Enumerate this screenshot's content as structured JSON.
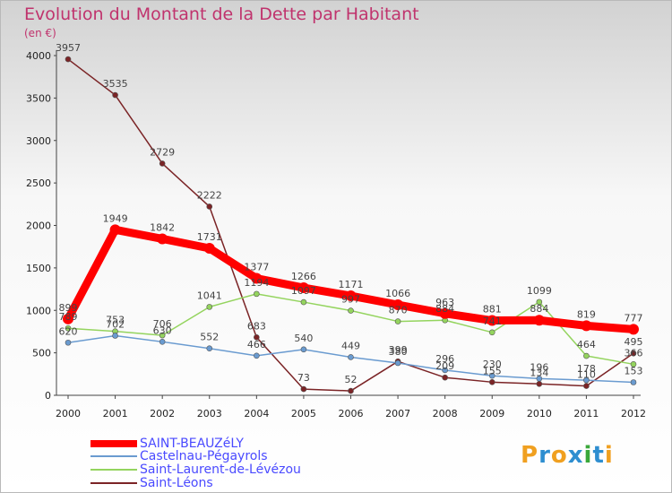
{
  "title": "Evolution du Montant de la Dette par Habitant",
  "unit": "(en €)",
  "logo": {
    "text": "Proxiti",
    "colors": [
      "#f0a020",
      "#2e8ed0",
      "#f0a020",
      "#2e8ed0",
      "#3aa83a",
      "#2e8ed0",
      "#f0a020"
    ]
  },
  "chart_data": {
    "type": "line",
    "title": "Evolution du Montant de la Dette par Habitant",
    "ylabel": "(en €)",
    "xlabel": "",
    "ylim": [
      0,
      4000
    ],
    "yticks": [
      0,
      500,
      1000,
      1500,
      2000,
      2500,
      3000,
      3500,
      4000
    ],
    "grid": false,
    "legend_position": "bottom-left",
    "x": [
      "2000",
      "2001",
      "2002",
      "2003",
      "2004",
      "2005",
      "2006",
      "2007",
      "2008",
      "2009",
      "2010",
      "2011",
      "2012"
    ],
    "series": [
      {
        "name": "SAINT-BEAUZéLY",
        "color": "#ff0000",
        "line_width": 9,
        "values": [
          899,
          1949,
          1842,
          1731,
          1377,
          1266,
          1171,
          1066,
          963,
          881,
          884,
          819,
          777
        ]
      },
      {
        "name": "Castelnau-Pégayrols",
        "color": "#6a9bd0",
        "line_width": 1.5,
        "values": [
          620,
          702,
          630,
          552,
          466,
          540,
          449,
          380,
          296,
          230,
          196,
          178,
          153
        ]
      },
      {
        "name": "Saint-Laurent-de-Lévézou",
        "color": "#94d45e",
        "line_width": 1.5,
        "values": [
          789,
          753,
          706,
          1041,
          1194,
          1097,
          997,
          870,
          884,
          741,
          1099,
          464,
          366
        ]
      },
      {
        "name": "Saint-Léons",
        "color": "#7b2426",
        "line_width": 1.5,
        "values": [
          3957,
          3535,
          2729,
          2222,
          683,
          73,
          52,
          399,
          209,
          155,
          134,
          110,
          495
        ]
      }
    ]
  }
}
